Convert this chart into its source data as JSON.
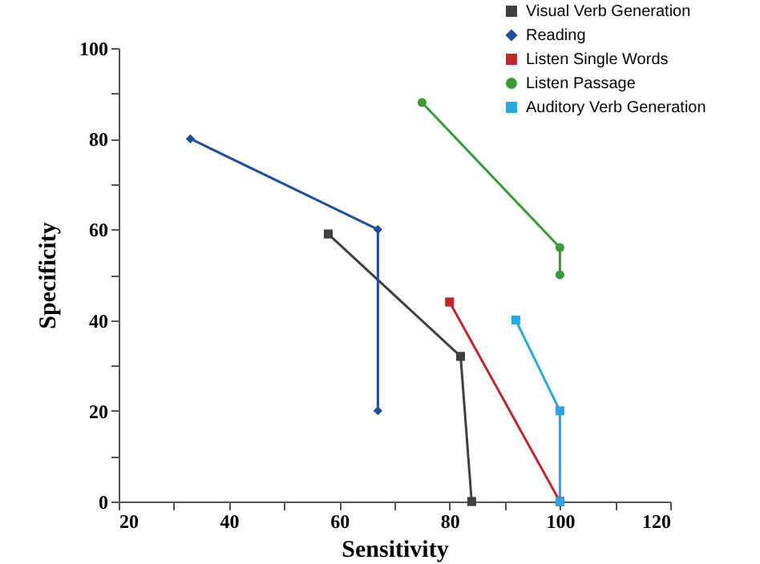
{
  "chart_data": {
    "type": "line",
    "xlabel": "Sensitivity",
    "ylabel": "Specificity",
    "xlim": [
      20,
      120
    ],
    "ylim": [
      0,
      100
    ],
    "xticks": [
      20,
      {
        "value": 30,
        "label": null
      },
      40,
      {
        "value": 50,
        "label": null
      },
      60,
      {
        "value": 70,
        "label": null
      },
      80,
      {
        "value": 90,
        "label": null
      },
      100,
      {
        "value": 110,
        "label": null
      },
      120
    ],
    "yticks": [
      0,
      {
        "value": 10,
        "label": null
      },
      20,
      {
        "value": 30,
        "label": null
      },
      40,
      {
        "value": 50,
        "label": null
      },
      60,
      {
        "value": 70,
        "label": null
      },
      80,
      {
        "value": 90,
        "label": null
      },
      100
    ],
    "grid": false,
    "legend": "top right",
    "line_style": "solid",
    "series": [
      {
        "name": "Visual Verb Generation",
        "color": "#404040",
        "marker": "square",
        "x": [
          58,
          82,
          84
        ],
        "values": [
          59,
          32,
          0
        ]
      },
      {
        "name": "Reading",
        "color": "#1f4e9c",
        "marker": "diamond",
        "x": [
          33,
          67,
          67
        ],
        "values": [
          80,
          60,
          20
        ]
      },
      {
        "name": "Listen Single Words",
        "color": "#c0272d",
        "marker": "square",
        "x": [
          80,
          100
        ],
        "values": [
          44,
          0
        ]
      },
      {
        "name": " Listen Passage",
        "color": "#3a9a3a",
        "marker": "circle",
        "x": [
          75,
          100,
          100
        ],
        "values": [
          88,
          56,
          50
        ]
      },
      {
        "name": "Auditory Verb Generation",
        "color": "#29a8e0",
        "marker": "square",
        "x": [
          92,
          100,
          100
        ],
        "values": [
          40,
          20,
          0
        ]
      }
    ]
  }
}
